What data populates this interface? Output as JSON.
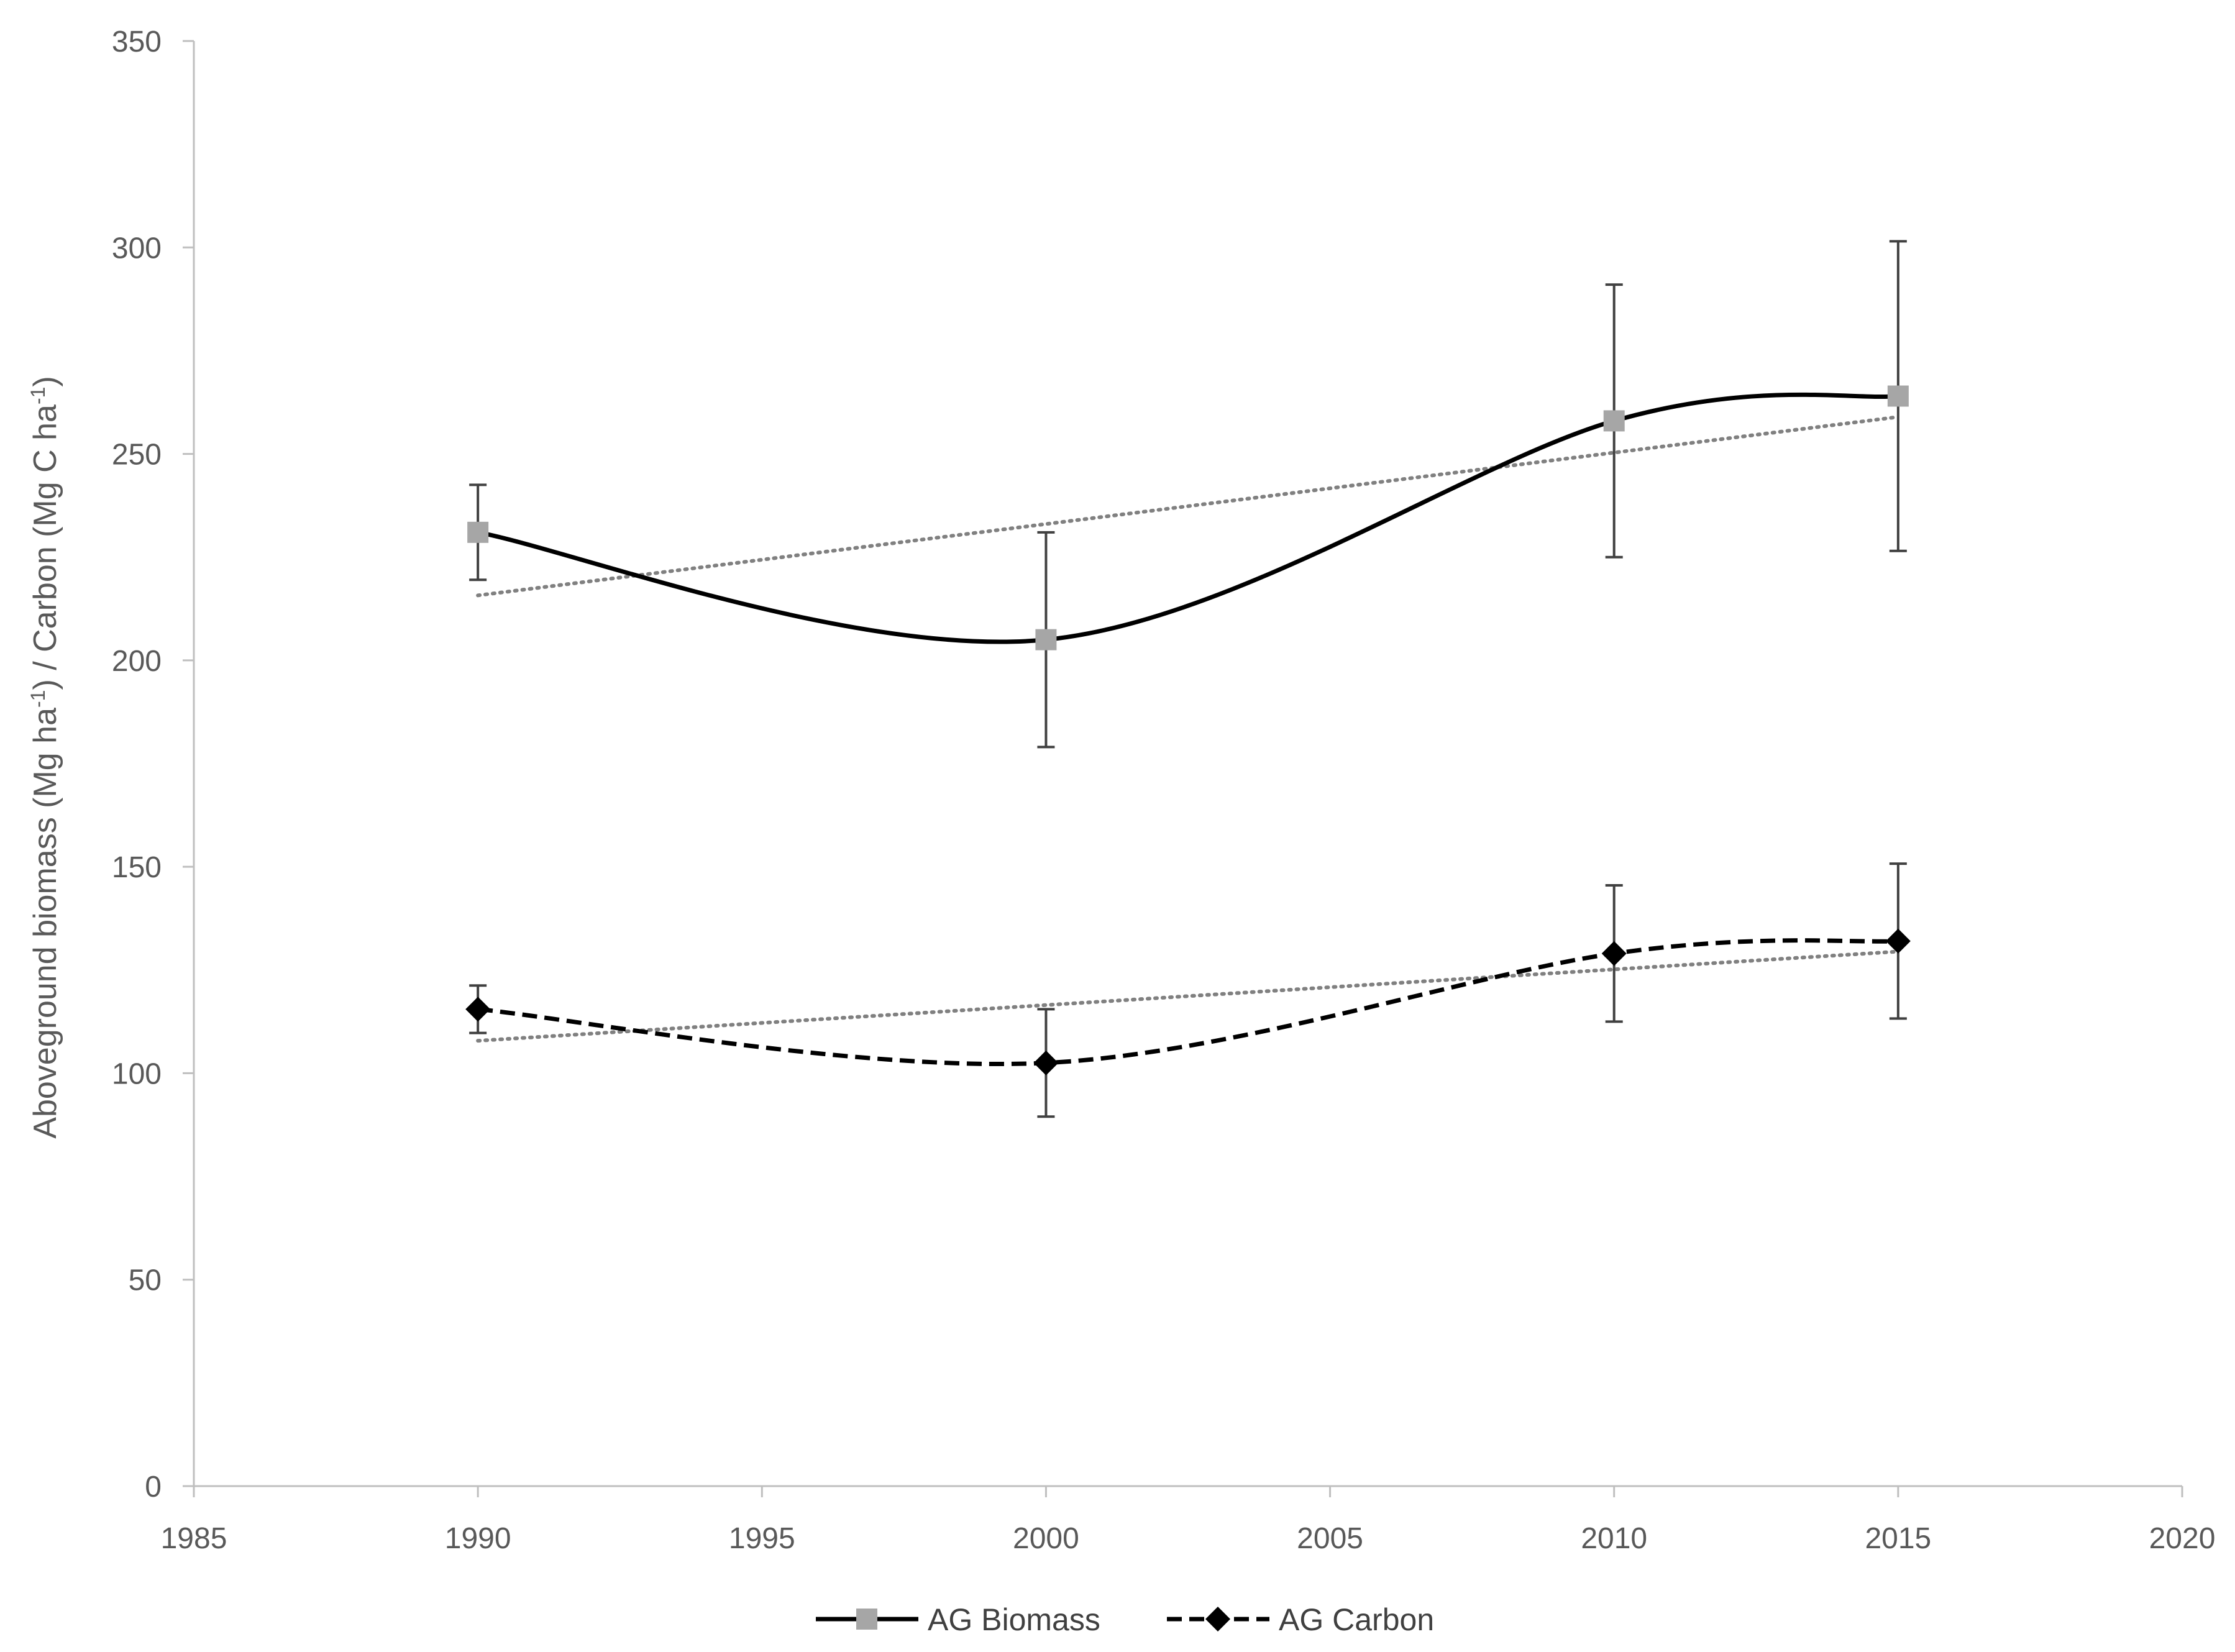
{
  "chart_data": {
    "type": "scatter",
    "title": "",
    "xlabel": "",
    "ylabel": {
      "parts": [
        {
          "text": "Aboveground biomass (Mg ha"
        },
        {
          "text": "-1",
          "sup": true
        },
        {
          "text": ") / Carbon (Mg C ha"
        },
        {
          "text": "-1",
          "sup": true
        },
        {
          "text": ")"
        }
      ]
    },
    "xlim": [
      1985,
      2020
    ],
    "ylim": [
      0,
      350
    ],
    "x_ticks": [
      "1985",
      "1990",
      "1995",
      "2000",
      "2005",
      "2010",
      "2015",
      "2020"
    ],
    "y_ticks": [
      "0",
      "50",
      "100",
      "150",
      "200",
      "250",
      "300",
      "350"
    ],
    "grid": false,
    "legend_position": "bottom",
    "series": [
      {
        "name": "AG Biomass",
        "marker": "square",
        "line_style": "solid",
        "smooth": true,
        "color": "#000000",
        "marker_color": "#a6a6a6",
        "x": [
          1990,
          2000,
          2010,
          2015
        ],
        "y": [
          231,
          205,
          258,
          264
        ],
        "error": [
          11.5,
          26,
          33,
          37.5
        ],
        "trendline": {
          "type": "linear",
          "color": "#808080",
          "style": "dotted"
        }
      },
      {
        "name": "AG Carbon",
        "marker": "diamond",
        "line_style": "dashed",
        "smooth": true,
        "color": "#000000",
        "marker_color": "#000000",
        "x": [
          1990,
          2000,
          2010,
          2015
        ],
        "y": [
          115.5,
          102.5,
          129,
          132
        ],
        "error": [
          5.75,
          13,
          16.5,
          18.75
        ],
        "trendline": {
          "type": "linear",
          "color": "#808080",
          "style": "dotted"
        }
      }
    ]
  }
}
